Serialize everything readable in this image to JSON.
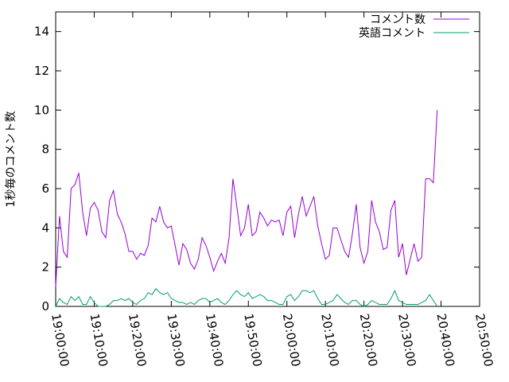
{
  "chart_data": {
    "type": "line",
    "title": "",
    "xlabel": "",
    "ylabel": "1秒毎のコメント数",
    "xlim": [
      "19:00:00",
      "20:50:00"
    ],
    "ylim": [
      0,
      15
    ],
    "x_ticks": [
      "19:00:00",
      "19:10:00",
      "19:20:00",
      "19:30:00",
      "19:40:00",
      "19:50:00",
      "20:00:00",
      "20:10:00",
      "20:20:00",
      "20:30:00",
      "20:40:00",
      "20:50:00"
    ],
    "y_ticks": [
      0,
      2,
      4,
      6,
      8,
      10,
      12,
      14
    ],
    "grid": false,
    "legend_position": "top-right",
    "x_interval_seconds": 60,
    "x_start": "19:00:00",
    "series": [
      {
        "name": "コメント数",
        "color": "#9400d3",
        "values": [
          1.0,
          4.6,
          2.8,
          2.5,
          6.0,
          6.2,
          6.8,
          4.8,
          3.6,
          5.0,
          5.3,
          4.9,
          3.8,
          3.5,
          5.4,
          5.9,
          4.7,
          4.3,
          3.7,
          2.8,
          2.8,
          2.4,
          2.7,
          2.6,
          3.1,
          4.5,
          4.3,
          5.1,
          4.3,
          4.0,
          4.1,
          3.1,
          2.1,
          3.2,
          2.9,
          2.2,
          1.9,
          2.4,
          3.5,
          3.1,
          2.5,
          1.8,
          2.3,
          2.7,
          2.2,
          3.5,
          6.5,
          5.1,
          3.6,
          4.0,
          5.2,
          3.6,
          3.8,
          4.8,
          4.5,
          4.1,
          4.4,
          4.3,
          4.4,
          3.6,
          4.8,
          5.1,
          3.5,
          4.7,
          5.6,
          4.6,
          5.1,
          5.6,
          4.1,
          3.2,
          2.4,
          2.6,
          4.0,
          4.0,
          3.4,
          2.8,
          2.5,
          3.7,
          5.2,
          3.0,
          2.2,
          2.8,
          5.4,
          4.3,
          3.8,
          2.9,
          3.0,
          4.9,
          5.4,
          2.5,
          3.2,
          1.6,
          2.4,
          3.2,
          2.3,
          2.5,
          6.5,
          6.5,
          6.3,
          10.0
        ]
      },
      {
        "name": "英語コメント",
        "color": "#009e73",
        "values": [
          0.0,
          0.4,
          0.2,
          0.1,
          0.5,
          0.3,
          0.5,
          0.1,
          0.1,
          0.5,
          0.2,
          0.0,
          0.0,
          0.0,
          0.1,
          0.3,
          0.3,
          0.4,
          0.3,
          0.4,
          0.2,
          0.1,
          0.3,
          0.4,
          0.7,
          0.6,
          0.9,
          0.7,
          0.6,
          0.7,
          0.4,
          0.3,
          0.2,
          0.2,
          0.1,
          0.2,
          0.1,
          0.3,
          0.4,
          0.4,
          0.2,
          0.3,
          0.4,
          0.2,
          0.1,
          0.3,
          0.6,
          0.8,
          0.6,
          0.5,
          0.7,
          0.4,
          0.5,
          0.6,
          0.5,
          0.3,
          0.3,
          0.2,
          0.1,
          0.1,
          0.5,
          0.6,
          0.3,
          0.5,
          0.8,
          0.8,
          0.7,
          0.8,
          0.4,
          0.1,
          0.1,
          0.2,
          0.3,
          0.6,
          0.4,
          0.2,
          0.1,
          0.3,
          0.3,
          0.1,
          0.0,
          0.1,
          0.3,
          0.2,
          0.1,
          0.1,
          0.1,
          0.4,
          0.8,
          0.3,
          0.2,
          0.1,
          0.1,
          0.1,
          0.1,
          0.2,
          0.3,
          0.6,
          0.3,
          0.0
        ]
      }
    ]
  }
}
